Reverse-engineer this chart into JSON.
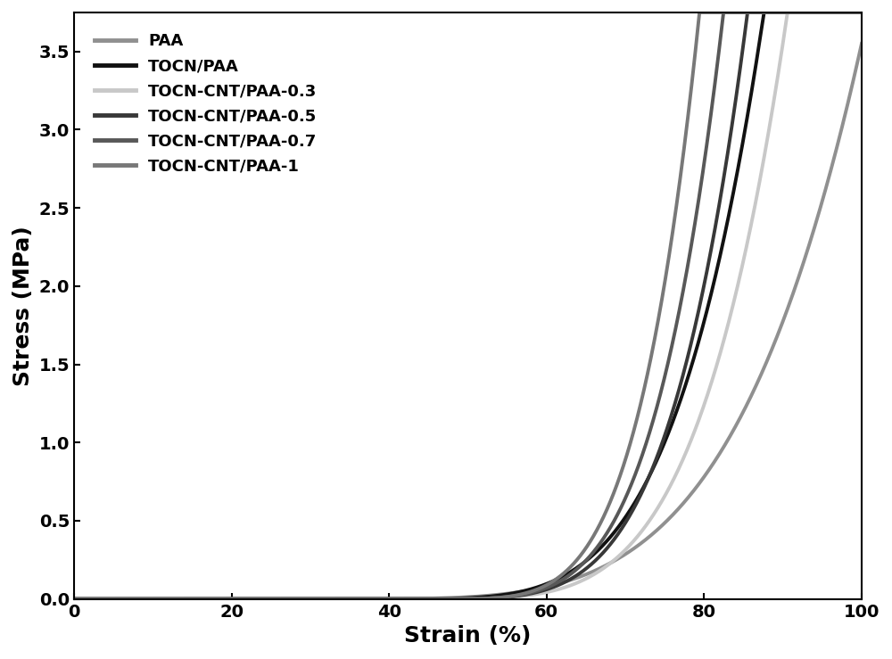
{
  "title": "",
  "xlabel": "Strain (%)",
  "ylabel": "Stress (MPa)",
  "xlim": [
    0,
    100
  ],
  "ylim": [
    0,
    3.75
  ],
  "yticks": [
    0.0,
    0.5,
    1.0,
    1.5,
    2.0,
    2.5,
    3.0,
    3.5
  ],
  "xticks": [
    0,
    20,
    40,
    60,
    80,
    100
  ],
  "series": [
    {
      "label": "PAA",
      "color": "#909090",
      "x_onset": 30,
      "x_end": 100,
      "power": 4.5
    },
    {
      "label": "TOCN/PAA",
      "color": "#111111",
      "x_onset": 38,
      "x_end": 87,
      "power": 4.5
    },
    {
      "label": "TOCN-CNT/PAA-0.3",
      "color": "#c8c8c8",
      "x_onset": 42,
      "x_end": 90,
      "power": 4.5
    },
    {
      "label": "TOCN-CNT/PAA-0.5",
      "color": "#383838",
      "x_onset": 43,
      "x_end": 85,
      "power": 4.5
    },
    {
      "label": "TOCN-CNT/PAA-0.7",
      "color": "#585858",
      "x_onset": 44,
      "x_end": 82,
      "power": 4.5
    },
    {
      "label": "TOCN-CNT/PAA-1",
      "color": "#787878",
      "x_onset": 45,
      "x_end": 79,
      "power": 4.5
    }
  ],
  "max_stress": 3.55,
  "linewidth": 2.8,
  "legend_fontsize": 13,
  "axis_label_fontsize": 18,
  "tick_fontsize": 14,
  "background_color": "#ffffff"
}
